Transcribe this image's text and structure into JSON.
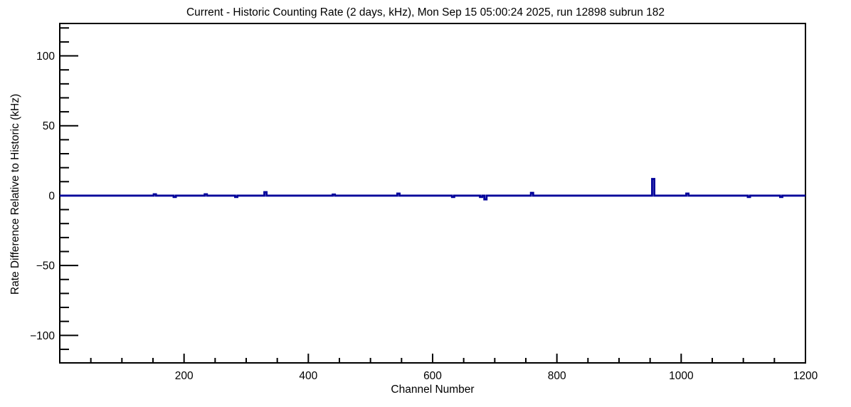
{
  "page": {
    "background": "#ffffff"
  },
  "chart_data": {
    "type": "line",
    "style": "root-histogram-step",
    "title": "Current - Historic Counting Rate (2 days, kHz), Mon Sep 15 05:00:24 2025, run 12898 subrun 182",
    "xlabel": "Channel Number",
    "ylabel": "Rate Difference Relative to Historic (kHz)",
    "xlim": [
      0,
      1200
    ],
    "ylim": [
      -119.7,
      123.2
    ],
    "grid": false,
    "legend": false,
    "x_major_ticks": [
      200,
      400,
      600,
      800,
      1000,
      1200
    ],
    "x_minor_step": 50,
    "x_tick_labels": [
      "200",
      "400",
      "600",
      "800",
      "1000",
      "1200"
    ],
    "y_major_ticks": [
      -100,
      -50,
      0,
      50,
      100
    ],
    "y_minor_step": 10,
    "y_tick_labels": [
      "−100",
      "−50",
      "0",
      "50",
      "100"
    ],
    "frame_color": "#000000",
    "line_color": "#00009a",
    "baseline_value": 0,
    "series": [
      {
        "name": "rate-difference",
        "baseline": 0,
        "spike_half_width_channels": 1.8,
        "spikes": [
          {
            "channel": 153,
            "value": 1.0
          },
          {
            "channel": 185,
            "value": -1.0
          },
          {
            "channel": 235,
            "value": 1.0
          },
          {
            "channel": 284,
            "value": -1.0
          },
          {
            "channel": 331,
            "value": 2.5
          },
          {
            "channel": 441,
            "value": 0.8
          },
          {
            "channel": 545,
            "value": 1.5
          },
          {
            "channel": 633,
            "value": -1.0
          },
          {
            "channel": 678,
            "value": -1.0
          },
          {
            "channel": 685,
            "value": -2.7
          },
          {
            "channel": 760,
            "value": 2.0
          },
          {
            "channel": 955,
            "value": 11.9
          },
          {
            "channel": 1010,
            "value": 1.5
          },
          {
            "channel": 1109,
            "value": -1.0
          },
          {
            "channel": 1161,
            "value": -1.0
          }
        ]
      }
    ]
  }
}
